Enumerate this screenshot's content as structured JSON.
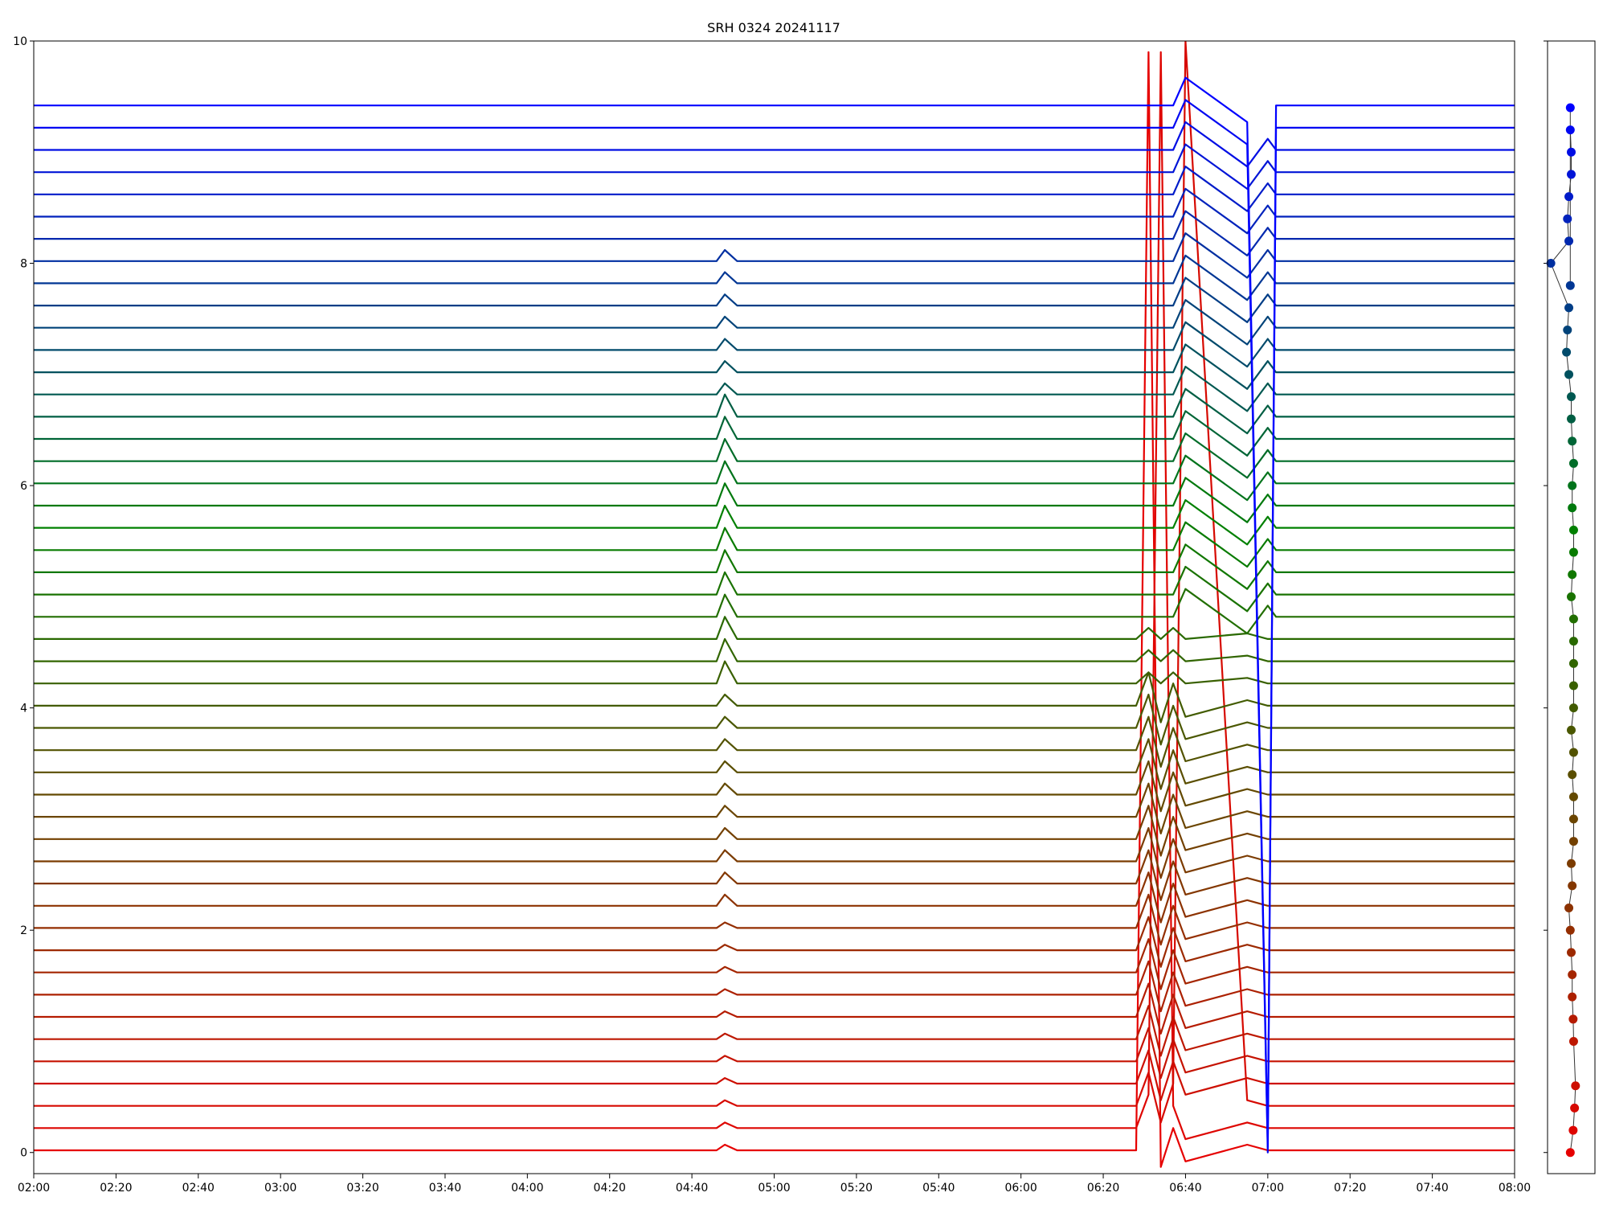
{
  "chart_data": [
    {
      "type": "line",
      "title": "SRH 0324 20241117",
      "x": [
        "02:00",
        "04:46",
        "04:48",
        "04:51",
        "06:28",
        "06:31",
        "06:34",
        "06:37",
        "06:40",
        "06:55",
        "07:00",
        "07:02",
        "08:00"
      ],
      "xlim": [
        "02:00",
        "08:00"
      ],
      "xticks": [
        "02:00",
        "02:20",
        "02:40",
        "03:00",
        "03:20",
        "03:40",
        "04:00",
        "04:20",
        "04:40",
        "05:00",
        "05:20",
        "05:40",
        "06:00",
        "06:20",
        "06:40",
        "07:00",
        "07:20",
        "07:40",
        "08:00"
      ],
      "ylim": [
        -0.19,
        10
      ],
      "yticks": [
        0,
        2,
        4,
        6,
        8,
        10
      ],
      "series": [
        {
          "color": "#e60000",
          "values": [
            0.02,
            0.02,
            0.07,
            0.02,
            0.02,
            9.9,
            -0.13,
            0.22,
            -0.08,
            0.07,
            0.02,
            0.02,
            0.02
          ]
        },
        {
          "color": "#de0500",
          "values": [
            0.22,
            0.22,
            0.27,
            0.22,
            0.22,
            0.52,
            9.9,
            0.42,
            0.12,
            0.27,
            0.22,
            0.22,
            0.22
          ]
        },
        {
          "color": "#d60900",
          "values": [
            0.42,
            0.42,
            0.47,
            0.42,
            0.42,
            0.72,
            0.27,
            0.62,
            10,
            0.47,
            0.42,
            0.42,
            0.42
          ]
        },
        {
          "color": "#cd0e00",
          "values": [
            0.62,
            0.62,
            0.67,
            0.62,
            0.62,
            0.92,
            0.47,
            0.82,
            0.52,
            0.67,
            0.62,
            0.62,
            0.62
          ]
        },
        {
          "color": "#c51200",
          "values": [
            0.82,
            0.82,
            0.87,
            0.82,
            0.82,
            1.12,
            0.67,
            1.02,
            0.72,
            0.87,
            0.82,
            0.82,
            0.82
          ]
        },
        {
          "color": "#bd1700",
          "values": [
            1.02,
            1.02,
            1.07,
            1.02,
            1.02,
            1.32,
            0.87,
            1.22,
            0.92,
            1.07,
            1.02,
            1.02,
            1.02
          ]
        },
        {
          "color": "#b51b00",
          "values": [
            1.22,
            1.22,
            1.27,
            1.22,
            1.22,
            1.52,
            1.07,
            1.42,
            1.12,
            1.27,
            1.22,
            1.22,
            1.22
          ]
        },
        {
          "color": "#ac2000",
          "values": [
            1.42,
            1.42,
            1.47,
            1.42,
            1.42,
            1.72,
            1.27,
            1.62,
            1.32,
            1.47,
            1.42,
            1.42,
            1.42
          ]
        },
        {
          "color": "#a42500",
          "values": [
            1.62,
            1.62,
            1.67,
            1.62,
            1.62,
            1.92,
            1.47,
            1.82,
            1.52,
            1.67,
            1.62,
            1.62,
            1.62
          ]
        },
        {
          "color": "#9c2900",
          "values": [
            1.82,
            1.82,
            1.87,
            1.82,
            1.82,
            2.12,
            1.67,
            2.02,
            1.72,
            1.87,
            1.82,
            1.82,
            1.82
          ]
        },
        {
          "color": "#942e00",
          "values": [
            2.02,
            2.02,
            2.07,
            2.02,
            2.02,
            2.32,
            1.87,
            2.22,
            1.92,
            2.07,
            2.02,
            2.02,
            2.02
          ]
        },
        {
          "color": "#8c3200",
          "values": [
            2.22,
            2.22,
            2.32,
            2.22,
            2.22,
            2.52,
            2.07,
            2.42,
            2.12,
            2.27,
            2.22,
            2.22,
            2.22
          ]
        },
        {
          "color": "#833700",
          "values": [
            2.42,
            2.42,
            2.52,
            2.42,
            2.42,
            2.72,
            2.27,
            2.62,
            2.32,
            2.47,
            2.42,
            2.42,
            2.42
          ]
        },
        {
          "color": "#7b3b00",
          "values": [
            2.62,
            2.62,
            2.72,
            2.62,
            2.62,
            2.92,
            2.47,
            2.82,
            2.52,
            2.67,
            2.62,
            2.62,
            2.62
          ]
        },
        {
          "color": "#734000",
          "values": [
            2.82,
            2.82,
            2.92,
            2.82,
            2.82,
            3.12,
            2.67,
            3.02,
            2.72,
            2.87,
            2.82,
            2.82,
            2.82
          ]
        },
        {
          "color": "#6b4500",
          "values": [
            3.02,
            3.02,
            3.12,
            3.02,
            3.02,
            3.32,
            2.87,
            3.22,
            2.92,
            3.07,
            3.02,
            3.02,
            3.02
          ]
        },
        {
          "color": "#634900",
          "values": [
            3.22,
            3.22,
            3.32,
            3.22,
            3.22,
            3.52,
            3.07,
            3.42,
            3.12,
            3.27,
            3.22,
            3.22,
            3.22
          ]
        },
        {
          "color": "#5a4e00",
          "values": [
            3.42,
            3.42,
            3.52,
            3.42,
            3.42,
            3.72,
            3.27,
            3.62,
            3.32,
            3.47,
            3.42,
            3.42,
            3.42
          ]
        },
        {
          "color": "#525200",
          "values": [
            3.62,
            3.62,
            3.72,
            3.62,
            3.62,
            3.92,
            3.47,
            3.82,
            3.52,
            3.67,
            3.62,
            3.62,
            3.62
          ]
        },
        {
          "color": "#4a5700",
          "values": [
            3.82,
            3.82,
            3.92,
            3.82,
            3.82,
            4.12,
            3.67,
            4.02,
            3.72,
            3.87,
            3.82,
            3.82,
            3.82
          ]
        },
        {
          "color": "#425b00",
          "values": [
            4.02,
            4.02,
            4.12,
            4.02,
            4.02,
            4.32,
            3.87,
            4.22,
            3.92,
            4.07,
            4.02,
            4.02,
            4.02
          ]
        },
        {
          "color": "#396000",
          "values": [
            4.22,
            4.22,
            4.42,
            4.22,
            4.22,
            4.32,
            4.22,
            4.32,
            4.22,
            4.27,
            4.22,
            4.22,
            4.22
          ]
        },
        {
          "color": "#316500",
          "values": [
            4.42,
            4.42,
            4.62,
            4.42,
            4.42,
            4.52,
            4.42,
            4.52,
            4.42,
            4.47,
            4.42,
            4.42,
            4.42
          ]
        },
        {
          "color": "#296900",
          "values": [
            4.62,
            4.62,
            4.82,
            4.62,
            4.62,
            4.72,
            4.62,
            4.72,
            4.62,
            4.67,
            4.62,
            4.62,
            4.62
          ]
        },
        {
          "color": "#216e00",
          "values": [
            4.82,
            4.82,
            5.02,
            4.82,
            4.82,
            4.82,
            4.82,
            4.82,
            5.07,
            4.67,
            4.92,
            4.82,
            4.82
          ]
        },
        {
          "color": "#197200",
          "values": [
            5.02,
            5.02,
            5.22,
            5.02,
            5.02,
            5.02,
            5.02,
            5.02,
            5.27,
            4.87,
            5.12,
            5.02,
            5.02
          ]
        },
        {
          "color": "#107700",
          "values": [
            5.22,
            5.22,
            5.42,
            5.22,
            5.22,
            5.22,
            5.22,
            5.22,
            5.47,
            5.07,
            5.32,
            5.22,
            5.22
          ]
        },
        {
          "color": "#087b00",
          "values": [
            5.42,
            5.42,
            5.62,
            5.42,
            5.42,
            5.42,
            5.42,
            5.42,
            5.67,
            5.27,
            5.52,
            5.42,
            5.42
          ]
        },
        {
          "color": "#008000",
          "values": [
            5.62,
            5.62,
            5.82,
            5.62,
            5.62,
            5.62,
            5.62,
            5.62,
            5.87,
            5.47,
            5.72,
            5.62,
            5.62
          ]
        },
        {
          "color": "#00790d",
          "values": [
            5.82,
            5.82,
            6.02,
            5.82,
            5.82,
            5.82,
            5.82,
            5.82,
            6.07,
            5.67,
            5.92,
            5.82,
            5.82
          ]
        },
        {
          "color": "#00731b",
          "values": [
            6.02,
            6.02,
            6.22,
            6.02,
            6.02,
            6.02,
            6.02,
            6.02,
            6.27,
            5.87,
            6.12,
            6.02,
            6.02
          ]
        },
        {
          "color": "#006c28",
          "values": [
            6.22,
            6.22,
            6.42,
            6.22,
            6.22,
            6.22,
            6.22,
            6.22,
            6.47,
            6.07,
            6.32,
            6.22,
            6.22
          ]
        },
        {
          "color": "#006536",
          "values": [
            6.42,
            6.42,
            6.62,
            6.42,
            6.42,
            6.42,
            6.42,
            6.42,
            6.67,
            6.27,
            6.52,
            6.42,
            6.42
          ]
        },
        {
          "color": "#005e43",
          "values": [
            6.62,
            6.62,
            6.82,
            6.62,
            6.62,
            6.62,
            6.62,
            6.62,
            6.87,
            6.47,
            6.72,
            6.62,
            6.62
          ]
        },
        {
          "color": "#005851",
          "values": [
            6.82,
            6.82,
            6.92,
            6.82,
            6.82,
            6.82,
            6.82,
            6.82,
            7.07,
            6.67,
            6.92,
            6.82,
            6.82
          ]
        },
        {
          "color": "#00515e",
          "values": [
            7.02,
            7.02,
            7.12,
            7.02,
            7.02,
            7.02,
            7.02,
            7.02,
            7.27,
            6.87,
            7.12,
            7.02,
            7.02
          ]
        },
        {
          "color": "#004a6b",
          "values": [
            7.22,
            7.22,
            7.32,
            7.22,
            7.22,
            7.22,
            7.22,
            7.22,
            7.47,
            7.07,
            7.32,
            7.22,
            7.22
          ]
        },
        {
          "color": "#004379",
          "values": [
            7.42,
            7.42,
            7.52,
            7.42,
            7.42,
            7.42,
            7.42,
            7.42,
            7.67,
            7.27,
            7.52,
            7.42,
            7.42
          ]
        },
        {
          "color": "#003d86",
          "values": [
            7.62,
            7.62,
            7.72,
            7.62,
            7.62,
            7.62,
            7.62,
            7.62,
            7.87,
            7.47,
            7.72,
            7.62,
            7.62
          ]
        },
        {
          "color": "#003694",
          "values": [
            7.82,
            7.82,
            7.92,
            7.82,
            7.82,
            7.82,
            7.82,
            7.82,
            8.07,
            7.67,
            7.92,
            7.82,
            7.82
          ]
        },
        {
          "color": "#002fa1",
          "values": [
            8.02,
            8.02,
            8.12,
            8.02,
            8.02,
            8.02,
            8.02,
            8.02,
            8.27,
            7.87,
            8.12,
            8.02,
            8.02
          ]
        },
        {
          "color": "#0028ae",
          "values": [
            8.22,
            8.22,
            8.22,
            8.22,
            8.22,
            8.22,
            8.22,
            8.22,
            8.47,
            8.07,
            8.32,
            8.22,
            8.22
          ]
        },
        {
          "color": "#0022bc",
          "values": [
            8.42,
            8.42,
            8.42,
            8.42,
            8.42,
            8.42,
            8.42,
            8.42,
            8.67,
            8.27,
            8.52,
            8.42,
            8.42
          ]
        },
        {
          "color": "#001bc9",
          "values": [
            8.62,
            8.62,
            8.62,
            8.62,
            8.62,
            8.62,
            8.62,
            8.62,
            8.87,
            8.47,
            8.72,
            8.62,
            8.62
          ]
        },
        {
          "color": "#0014d7",
          "values": [
            8.82,
            8.82,
            8.82,
            8.82,
            8.82,
            8.82,
            8.82,
            8.82,
            9.07,
            8.67,
            8.92,
            8.82,
            8.82
          ]
        },
        {
          "color": "#000de4",
          "values": [
            9.02,
            9.02,
            9.02,
            9.02,
            9.02,
            9.02,
            9.02,
            9.02,
            9.27,
            8.87,
            9.12,
            9.02,
            9.02
          ]
        },
        {
          "color": "#0007f2",
          "values": [
            9.22,
            9.22,
            9.22,
            9.22,
            9.22,
            9.22,
            9.22,
            9.22,
            9.47,
            9.07,
            0.0,
            9.22,
            9.22
          ]
        },
        {
          "color": "#0000ff",
          "values": [
            9.42,
            9.42,
            9.42,
            9.42,
            9.42,
            9.42,
            9.42,
            9.42,
            9.67,
            9.27,
            0.05,
            9.42,
            9.42
          ]
        }
      ]
    },
    {
      "type": "scatter",
      "xlim": [
        0,
        1
      ],
      "ylim": [
        -0.19,
        10
      ],
      "yticks": [
        0,
        2,
        4,
        6,
        8,
        10
      ],
      "x": [
        0.48,
        0.54,
        0.57,
        0.59,
        0.55,
        0.54,
        0.52,
        0.52,
        0.5,
        0.48,
        0.45,
        0.52,
        0.5,
        0.55,
        0.55,
        0.55,
        0.52,
        0.55,
        0.5,
        0.55,
        0.55,
        0.55,
        0.55,
        0.55,
        0.5,
        0.52,
        0.55,
        0.55,
        0.52,
        0.52,
        0.55,
        0.52,
        0.5,
        0.5,
        0.45,
        0.4,
        0.42,
        0.45,
        0.07,
        0.45,
        0.42,
        0.45,
        0.5,
        0.5,
        0.48,
        0.48,
        0.48
      ],
      "values": [
        0,
        0.2,
        0.4,
        0.6,
        1.0,
        1.2,
        1.4,
        1.6,
        1.8,
        2.0,
        2.2,
        2.4,
        2.6,
        2.8,
        3.0,
        3.2,
        3.4,
        3.6,
        3.8,
        4.0,
        4.2,
        4.4,
        4.6,
        4.8,
        5.0,
        5.2,
        5.4,
        5.6,
        5.8,
        6.0,
        6.2,
        6.4,
        6.6,
        6.8,
        7.0,
        7.2,
        7.4,
        7.6,
        8.0,
        8.2,
        8.4,
        8.6,
        8.8,
        9.0,
        9.2,
        9.4,
        7.8
      ],
      "colors": [
        "#e60000",
        "#de0500",
        "#d60900",
        "#cd0e00",
        "#bd1700",
        "#b51b00",
        "#ac2000",
        "#a42500",
        "#9c2900",
        "#942e00",
        "#8c3200",
        "#833700",
        "#7b3b00",
        "#734000",
        "#6b4500",
        "#634900",
        "#5a4e00",
        "#525200",
        "#4a5700",
        "#425b00",
        "#396000",
        "#316500",
        "#296900",
        "#216e00",
        "#197200",
        "#107700",
        "#087b00",
        "#008000",
        "#00790d",
        "#00731b",
        "#006c28",
        "#006536",
        "#005e43",
        "#005851",
        "#00515e",
        "#004a6b",
        "#004379",
        "#003d86",
        "#002fa1",
        "#0028ae",
        "#0022bc",
        "#001bc9",
        "#0014d7",
        "#000de4",
        "#0007f2",
        "#0000ff",
        "#003694"
      ]
    }
  ]
}
